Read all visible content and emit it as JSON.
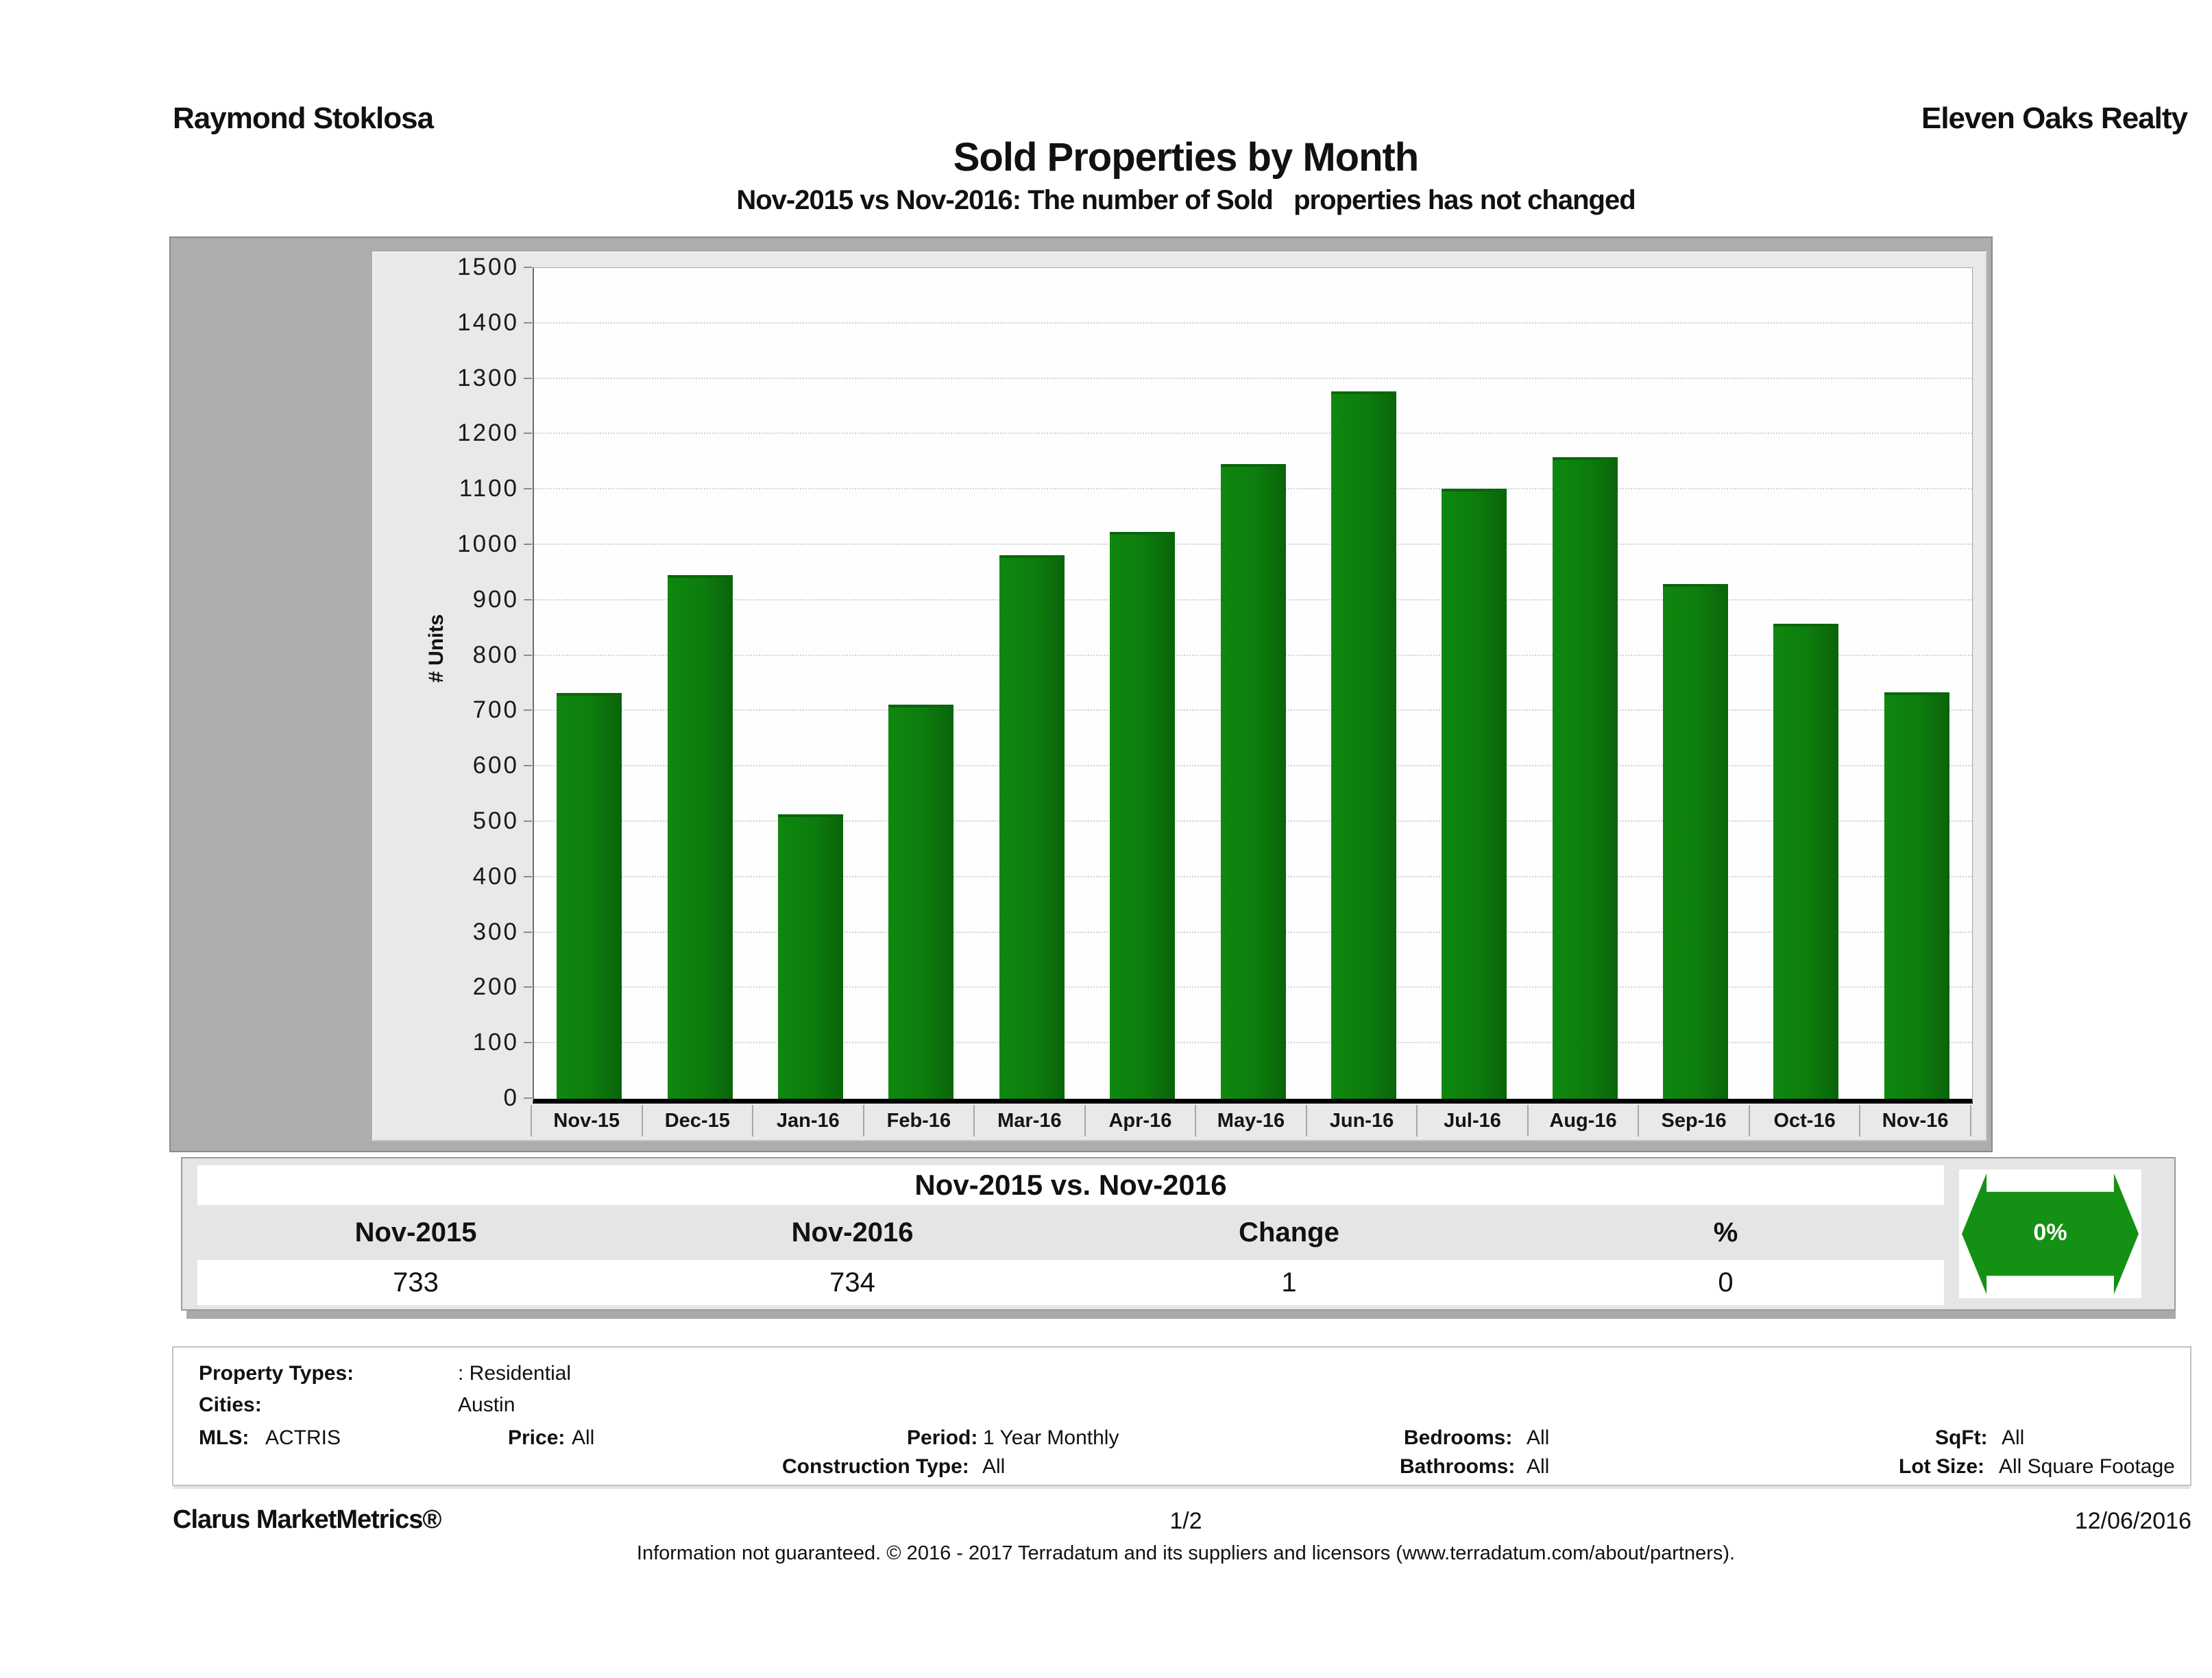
{
  "page": {
    "agent_name": "Raymond Stoklosa",
    "company_name": "Eleven Oaks Realty",
    "title": "Sold Properties by Month",
    "subtitle": "Nov-2015 vs Nov-2016: The number of Sold   properties has not changed"
  },
  "chart_data": {
    "type": "bar",
    "title": "Sold Properties by Month",
    "xlabel": "",
    "ylabel": "# Units",
    "ylim": [
      0,
      1500
    ],
    "y_major_step": 100,
    "grid": true,
    "legend": "none",
    "bar_color": "#0d7c0d",
    "categories": [
      "Nov-15",
      "Dec-15",
      "Jan-16",
      "Feb-16",
      "Mar-16",
      "Apr-16",
      "May-16",
      "Jun-16",
      "Jul-16",
      "Aug-16",
      "Sep-16",
      "Oct-16",
      "Nov-16"
    ],
    "values": [
      733,
      945,
      513,
      712,
      982,
      1024,
      1146,
      1277,
      1102,
      1158,
      930,
      858,
      734
    ]
  },
  "summary": {
    "title": "Nov-2015 vs. Nov-2016",
    "columns": [
      "Nov-2015",
      "Nov-2016",
      "Change",
      "%"
    ],
    "values": [
      "733",
      "734",
      "1",
      "0"
    ],
    "badge": {
      "label": "0%",
      "color": "#149114",
      "direction": "no-change"
    }
  },
  "filters": {
    "property_types": {
      "label": "Property Types:",
      "value": ": Residential"
    },
    "cities": {
      "label": "Cities:",
      "value": "Austin"
    },
    "mls": {
      "label": "MLS:",
      "value": "ACTRIS"
    },
    "price": {
      "label": "Price:",
      "value": "All"
    },
    "period": {
      "label": "Period:",
      "value": "1 Year Monthly"
    },
    "construction_type": {
      "label": "Construction Type:",
      "value": "All"
    },
    "bedrooms": {
      "label": "Bedrooms:",
      "value": "All"
    },
    "bathrooms": {
      "label": "Bathrooms:",
      "value": "All"
    },
    "sqft": {
      "label": "SqFt:",
      "value": "All"
    },
    "lot_size": {
      "label": "Lot Size:",
      "value": "All Square Footage"
    }
  },
  "footer": {
    "brand": "Clarus MarketMetrics®",
    "page_number": "1/2",
    "date": "12/06/2016",
    "disclaimer": "Information not guaranteed. © 2016 - 2017 Terradatum and its suppliers and licensors (www.terradatum.com/about/partners)."
  }
}
